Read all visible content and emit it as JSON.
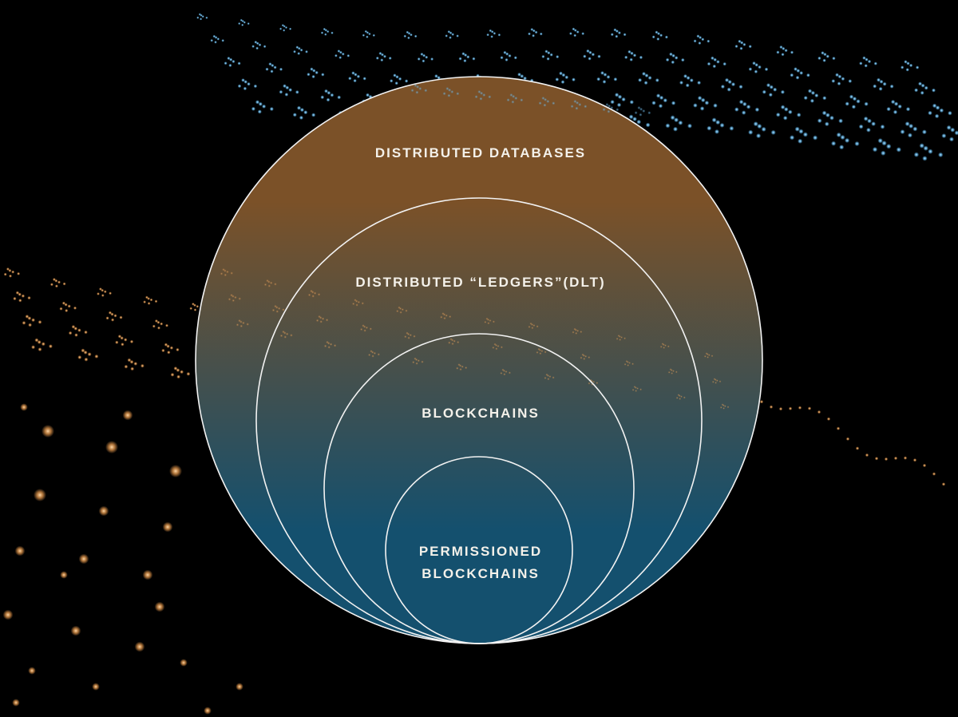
{
  "diagram": {
    "type": "nested-circles",
    "colors": {
      "background": "#000000",
      "gradient_top": "#7b5128",
      "gradient_bottom": "#14506e",
      "outline": "#f2f2f2",
      "orange_dots": "#d08a45",
      "blue_dots": "#5aa8d8"
    },
    "levels": [
      {
        "id": "distributed-databases",
        "label_lines": [
          "DISTRIBUTED DATABASES"
        ]
      },
      {
        "id": "distributed-ledgers",
        "label_lines": [
          "DISTRIBUTED “LEDGERS”(DLT)"
        ]
      },
      {
        "id": "blockchains",
        "label_lines": [
          "BLOCKCHAINS"
        ]
      },
      {
        "id": "permissioned-blockchains",
        "label_lines": [
          "PERMISSIONED",
          "BLOCKCHAINS"
        ]
      }
    ]
  }
}
